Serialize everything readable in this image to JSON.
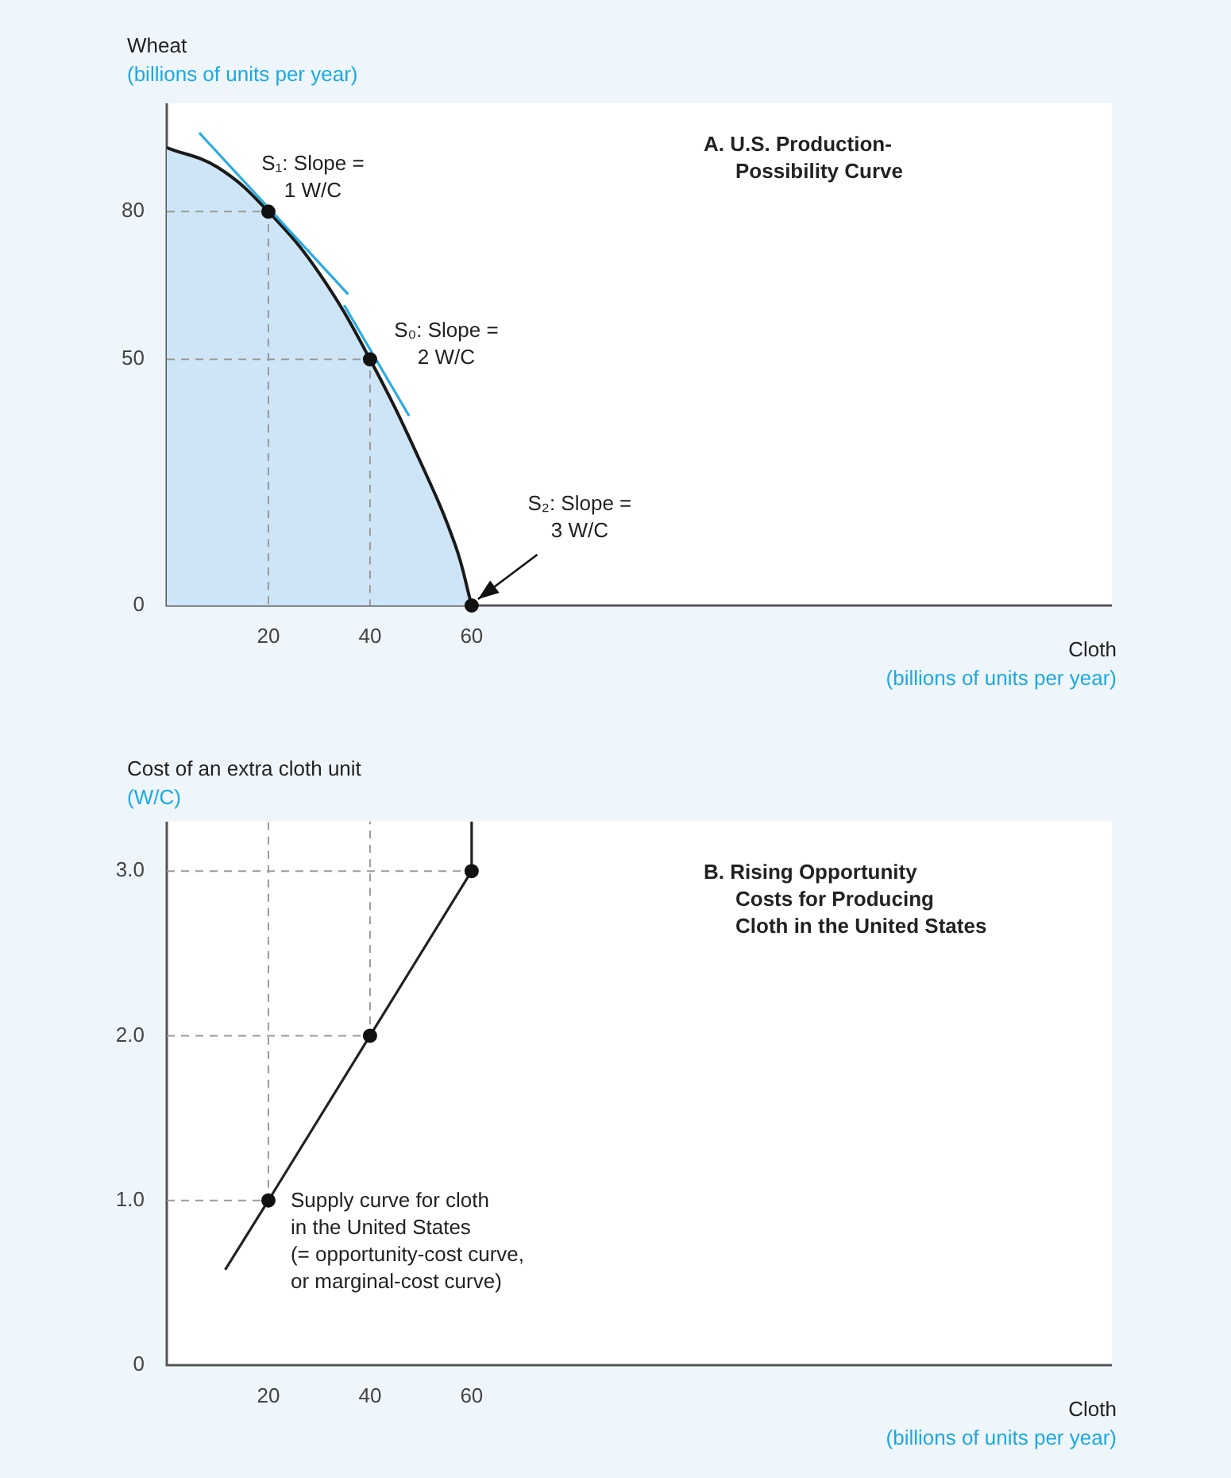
{
  "chart_data": [
    {
      "type": "area",
      "title": "A. U.S. Production-\nPossibility Curve",
      "xlabel": "Cloth\n(billions of units per year)",
      "ylabel": "Wheat\n(billions of units per year)",
      "xlim": [
        0,
        186
      ],
      "ylim": [
        0,
        102
      ],
      "xticks": [
        20,
        40,
        60
      ],
      "yticks": [
        0,
        50,
        80
      ],
      "grid": false,
      "legend": false,
      "annotations": [
        {
          "text": "S₁: Slope =\n1 W/C",
          "x": 20,
          "y": 80
        },
        {
          "text": "S₀: Slope =\n2 W/C",
          "x": 40,
          "y": 50
        },
        {
          "text": "S₂: Slope =\n3 W/C",
          "x": 60,
          "y": 0
        }
      ],
      "series": [
        {
          "color": "#cde5f7",
          "x": [
            0,
            10,
            20,
            30,
            40,
            50,
            56.8,
            60
          ],
          "values": [
            93,
            89,
            80,
            67.5,
            50,
            29,
            12.2,
            0
          ]
        },
        {
          "type": "line",
          "color": "#29abe2",
          "x": [
            6.4,
            35.7
          ],
          "values": [
            96,
            63.2
          ]
        },
        {
          "type": "line",
          "color": "#29abe2",
          "x": [
            34.9,
            47.7
          ],
          "values": [
            61,
            38.5
          ]
        },
        {
          "type": "line",
          "color": "#9a9a9a",
          "line_style": "dashed",
          "x": [
            0,
            20,
            20
          ],
          "values": [
            80,
            80,
            0
          ]
        },
        {
          "type": "line",
          "color": "#9a9a9a",
          "line_style": "dashed",
          "x": [
            0,
            40,
            40
          ],
          "values": [
            50,
            50,
            0
          ]
        },
        {
          "type": "scatter",
          "color": "#111111",
          "marker": "circle",
          "x": [
            20,
            40,
            60
          ],
          "values": [
            80,
            50,
            0
          ]
        }
      ]
    },
    {
      "type": "line",
      "title": "B. Rising Opportunity\nCosts for Producing\nCloth in the United States",
      "xlabel": "Cloth\n(billions of units per year)",
      "ylabel": "Cost of an extra cloth unit\n(W/C)",
      "xlim": [
        0,
        186
      ],
      "ylim": [
        0,
        3.3
      ],
      "xticks": [
        20,
        40,
        60
      ],
      "yticks": [
        0,
        {
          "value": 1,
          "label": "1.0"
        },
        {
          "value": 2,
          "label": "2.0"
        },
        {
          "value": 3,
          "label": "3.0"
        }
      ],
      "grid": false,
      "legend": false,
      "annotations": [
        {
          "text": "Supply curve for cloth\nin the United States\n(= opportunity-cost curve,\nor marginal-cost curve)",
          "x": 20,
          "y": 1
        }
      ],
      "series": [
        {
          "type": "line",
          "color": "#9a9a9a",
          "line_style": "dashed",
          "x": [
            0,
            20,
            20
          ],
          "values": [
            1,
            1,
            3.3
          ]
        },
        {
          "type": "line",
          "color": "#9a9a9a",
          "line_style": "dashed",
          "x": [
            0,
            40,
            40
          ],
          "values": [
            2,
            2,
            3.3
          ]
        },
        {
          "type": "line",
          "color": "#9a9a9a",
          "line_style": "dashed",
          "x": [
            0,
            60
          ],
          "values": [
            3,
            3
          ]
        },
        {
          "color": "#222222",
          "x": [
            11.5,
            20,
            40,
            60,
            60
          ],
          "values": [
            0.58,
            1,
            2,
            3,
            3.3
          ]
        },
        {
          "type": "scatter",
          "color": "#111111",
          "marker": "circle",
          "x": [
            20,
            40,
            60
          ],
          "values": [
            1,
            2,
            3
          ]
        }
      ]
    }
  ]
}
